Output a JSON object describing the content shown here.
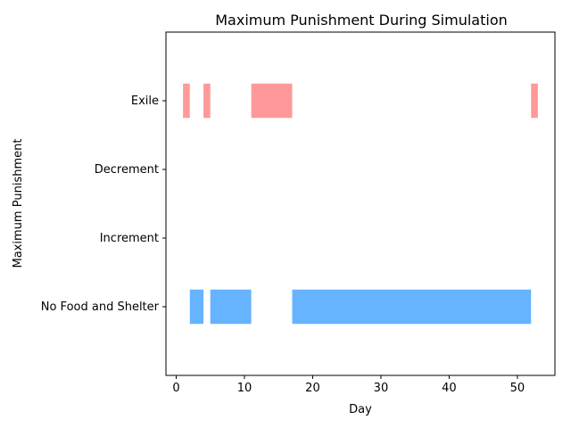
{
  "chart_data": {
    "type": "bar",
    "orientation": "horizontal-ranges",
    "title": "Maximum Punishment During Simulation",
    "xlabel": "Day",
    "ylabel": "Maximum Punishment",
    "xlim": [
      -1.5,
      55.5
    ],
    "x_ticks": [
      0,
      10,
      20,
      30,
      40,
      50
    ],
    "categories": [
      "No Food and Shelter",
      "Increment",
      "Decrement",
      "Exile"
    ],
    "grid": false,
    "series": [
      {
        "category": "No Food and Shelter",
        "color": "#66b3ff",
        "ranges": [
          [
            2,
            4
          ],
          [
            5,
            11
          ],
          [
            17,
            52
          ]
        ]
      },
      {
        "category": "Exile",
        "color": "#ff9999",
        "ranges": [
          [
            1,
            2
          ],
          [
            4,
            5
          ],
          [
            11,
            17
          ],
          [
            52,
            53
          ]
        ]
      }
    ]
  }
}
